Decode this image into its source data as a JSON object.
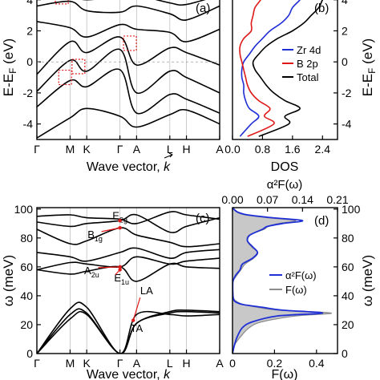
{
  "colors": {
    "band": "#000000",
    "zr": "#1f2fd6",
    "b": "#e01818",
    "total": "#000000",
    "a2f": "#1f2fd6",
    "fw": "#8c8c8c",
    "fill": "#c8c8c8",
    "marker": "#e01818",
    "vline": "#c0c0c0"
  },
  "chart_data": [
    {
      "panel": "a",
      "type": "line",
      "label": "(a)",
      "ylabel": "E-E_F (eV)",
      "xlabel": "Wave vector, k",
      "ylim": [
        -5,
        4.4
      ],
      "yticks": [
        "4",
        "2",
        "0",
        "-2",
        "-4"
      ],
      "xticks": [
        "Γ",
        "M",
        "K",
        "Γ",
        "A",
        "L",
        "H",
        "A"
      ],
      "x": [
        0,
        1,
        1.5,
        2.5,
        3,
        4,
        4.5,
        5.5
      ],
      "series": [
        {
          "values": [
            -4.9,
            -3.6,
            -3.0,
            -3.5,
            -4.2,
            -3.4,
            -3.1,
            -4.0
          ]
        },
        {
          "values": [
            -2.9,
            -1.2,
            -1.6,
            -0.5,
            -3.3,
            -2.1,
            -2.4,
            -3.3
          ]
        },
        {
          "values": [
            -1.9,
            0.1,
            -0.6,
            0.8,
            -2.0,
            -0.6,
            -1.0,
            -2.0
          ]
        },
        {
          "values": [
            -0.8,
            1.3,
            0.6,
            1.6,
            -0.2,
            0.9,
            0.6,
            -0.2
          ]
        },
        {
          "values": [
            2.6,
            2.2,
            1.6,
            2.4,
            2.1,
            1.9,
            1.3,
            2.1
          ]
        },
        {
          "values": [
            3.6,
            3.9,
            3.3,
            3.2,
            3.6,
            3.1,
            2.7,
            3.6
          ]
        },
        {
          "values": [
            4.4,
            4.2,
            4.0,
            4.2,
            4.3,
            3.8,
            3.7,
            4.3
          ]
        }
      ],
      "markers": [
        {
          "x": 0.75,
          "y": 4.2
        },
        {
          "x": 0.85,
          "y": -1.0
        },
        {
          "x": 1.25,
          "y": -0.3
        },
        {
          "x": 2.8,
          "y": 1.2
        }
      ]
    },
    {
      "panel": "b",
      "type": "line",
      "label": "(b)",
      "xlabel": "DOS",
      "xticks": [
        "0.0",
        "0.8",
        "1.6",
        "2.4"
      ],
      "xlim": [
        0,
        2.8
      ],
      "ylim": [
        -5,
        4.4
      ],
      "legend": [
        "Zr 4d",
        "B 2p",
        "Total"
      ],
      "y": [
        -4.8,
        -4,
        -3.5,
        -3,
        -2.5,
        -2,
        -1.5,
        -1,
        -0.5,
        0,
        0.5,
        1,
        1.5,
        2,
        2.5,
        3,
        3.5,
        4,
        4.4
      ],
      "series": [
        {
          "name": "Zr 4d",
          "values": [
            0.2,
            0.5,
            0.7,
            0.45,
            0.35,
            0.3,
            0.3,
            0.25,
            0.25,
            0.3,
            0.45,
            0.6,
            0.8,
            1.0,
            1.3,
            1.5,
            1.6,
            1.8,
            1.9
          ]
        },
        {
          "name": "B 2p",
          "values": [
            0.4,
            1.1,
            0.85,
            1.0,
            0.7,
            0.5,
            0.4,
            0.35,
            0.3,
            0.25,
            0.2,
            0.2,
            0.3,
            0.5,
            0.5,
            0.55,
            0.6,
            0.75,
            0.8
          ]
        },
        {
          "name": "Total",
          "values": [
            0.7,
            1.5,
            1.4,
            1.8,
            1.4,
            1.1,
            0.9,
            0.75,
            0.6,
            0.55,
            0.7,
            0.9,
            1.2,
            1.6,
            1.9,
            2.1,
            2.3,
            2.4,
            2.5
          ]
        }
      ]
    },
    {
      "panel": "c",
      "type": "line",
      "label": "(c)",
      "ylabel": "ω (meV)",
      "xlabel": "Wave vector, k",
      "ylim": [
        0,
        101
      ],
      "yticks": [
        "100",
        "80",
        "60",
        "40",
        "20",
        "0"
      ],
      "xticks": [
        "Γ",
        "M",
        "K",
        "Γ",
        "A",
        "L",
        "H",
        "A"
      ],
      "x": [
        0,
        1,
        1.5,
        2.5,
        3,
        4,
        4.5,
        5.5
      ],
      "series": [
        {
          "values": [
            0,
            24,
            27,
            0,
            21,
            28,
            29,
            28
          ]
        },
        {
          "values": [
            0,
            27,
            28,
            0,
            21,
            29,
            30,
            29
          ]
        },
        {
          "values": [
            0,
            31,
            32,
            0,
            27,
            27,
            26,
            27
          ]
        },
        {
          "values": [
            58,
            63,
            62,
            60,
            67,
            62,
            64,
            66
          ]
        },
        {
          "values": [
            58,
            55,
            57,
            60,
            50,
            62,
            60,
            59
          ]
        },
        {
          "values": [
            70,
            67,
            64,
            70,
            73,
            66,
            70,
            72
          ]
        },
        {
          "values": [
            86,
            76,
            78,
            87,
            82,
            77,
            74,
            76
          ]
        },
        {
          "values": [
            91,
            88,
            90,
            92,
            96,
            84,
            88,
            94
          ]
        },
        {
          "values": [
            95,
            96,
            94,
            93,
            90,
            98,
            96,
            93
          ]
        }
      ],
      "annotations": [
        {
          "text": "E",
          "sub": "2g",
          "x": 2.5,
          "y": 93,
          "ax": 2.5,
          "ay": 92
        },
        {
          "text": "B",
          "sub": "1g",
          "x": 1.75,
          "y": 80,
          "ax": 2.5,
          "ay": 87
        },
        {
          "text": "A",
          "sub": "2u",
          "x": 1.65,
          "y": 55,
          "ax": 2.5,
          "ay": 60
        },
        {
          "text": "E",
          "sub": "1u",
          "x": 2.55,
          "y": 50,
          "ax": 2.5,
          "ay": 58
        },
        {
          "text": "LA",
          "x": 3.3,
          "y": 41,
          "ax": 2.9,
          "ay": 23
        },
        {
          "text": "TA",
          "x": 3.0,
          "y": 15
        }
      ]
    },
    {
      "panel": "d",
      "type": "area",
      "label": "(d)",
      "top_xlabel": "α²F(ω)",
      "top_xticks": [
        "0.00",
        "0.07",
        "0.14",
        "0.21"
      ],
      "top_xlim": [
        0,
        0.21
      ],
      "bottom_xlabel": "F(ω)",
      "bottom_xticks": [
        "0",
        "0.2",
        "0.4"
      ],
      "bottom_xlim": [
        0,
        0.5
      ],
      "ylabel": "ω (meV)",
      "yticks": [
        "100",
        "80",
        "60",
        "40",
        "20",
        "0"
      ],
      "ylim": [
        0,
        101
      ],
      "legend": [
        "α²F(ω)",
        "F(ω)"
      ],
      "y": [
        0,
        6,
        12,
        18,
        22,
        26,
        28,
        30,
        32,
        34,
        36,
        38,
        40,
        45,
        50,
        54,
        58,
        62,
        66,
        70,
        74,
        78,
        82,
        86,
        88,
        90,
        92,
        94,
        96,
        98,
        101
      ],
      "series": [
        {
          "name": "α²F(ω)",
          "values": [
            0,
            0.004,
            0.01,
            0.02,
            0.04,
            0.09,
            0.18,
            0.1,
            0.06,
            0.02,
            0.005,
            0.002,
            0.001,
            0.0005,
            0.001,
            0.006,
            0.015,
            0.02,
            0.04,
            0.05,
            0.04,
            0.03,
            0.035,
            0.06,
            0.07,
            0.1,
            0.14,
            0.08,
            0.03,
            0.01,
            0
          ]
        },
        {
          "name": "F(ω)",
          "values": [
            0,
            0.01,
            0.04,
            0.08,
            0.14,
            0.3,
            0.47,
            0.22,
            0.12,
            0.05,
            0.02,
            0.005,
            0.002,
            0.001,
            0.002,
            0.02,
            0.04,
            0.06,
            0.1,
            0.12,
            0.09,
            0.07,
            0.08,
            0.15,
            0.17,
            0.22,
            0.3,
            0.17,
            0.06,
            0.02,
            0
          ]
        }
      ]
    }
  ]
}
